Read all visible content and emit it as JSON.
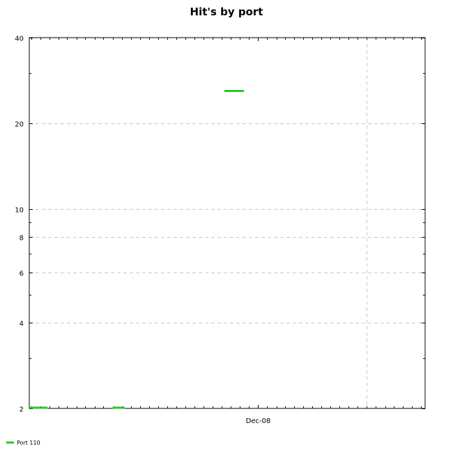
{
  "chart_data": {
    "type": "line",
    "title": "Hit's by port",
    "xlabel": "",
    "ylabel": "",
    "y_scale": "log",
    "ylim": [
      2,
      40
    ],
    "y_major_ticks": [
      2,
      4,
      6,
      8,
      10,
      20,
      40
    ],
    "y_minor_ticks": [
      3,
      5,
      7,
      9,
      30
    ],
    "x_scale": "time",
    "xlim": [
      "2006-10-25",
      "2010-06-15"
    ],
    "x_ticks": [
      {
        "date": "2008-12-01",
        "label": "Dec-08"
      }
    ],
    "x_grid_lines": [
      "2009-12-01"
    ],
    "grid": true,
    "legend": {
      "placement": "bottom-left"
    },
    "series": [
      {
        "name": "Port 110",
        "color": "#22cc22",
        "segments": [
          {
            "x": [
              "2008-08-10",
              "2008-10-15"
            ],
            "y": [
              26,
              26
            ]
          },
          {
            "x": [
              "2006-10-25",
              "2006-12-25"
            ],
            "y": [
              2,
              2
            ]
          },
          {
            "x": [
              "2007-08-01",
              "2007-09-10"
            ],
            "y": [
              2,
              2
            ]
          }
        ]
      }
    ]
  }
}
